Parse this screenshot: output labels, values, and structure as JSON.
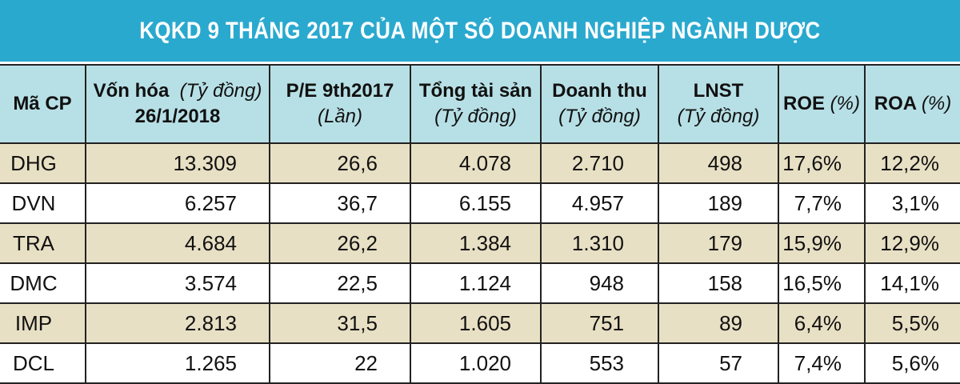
{
  "chart_data": {
    "type": "table",
    "title": "KQKD 9 THÁNG 2017 CỦA MỘT SỐ DOANH NGHIỆP NGÀNH DƯỢC",
    "columns": [
      {
        "label": "Mã CP",
        "unit": ""
      },
      {
        "label": "Vốn hóa",
        "unit": "(Tỷ đồng)",
        "label2": "26/1/2018"
      },
      {
        "label": "P/E 9th2017",
        "unit": "(Lần)"
      },
      {
        "label": "Tổng tài sản",
        "unit": "(Tỷ đồng)"
      },
      {
        "label": "Doanh thu",
        "unit": "(Tỷ đồng)"
      },
      {
        "label": "LNST",
        "unit": "(Tỷ đồng)"
      },
      {
        "label": "ROE",
        "unit": "(%)"
      },
      {
        "label": "ROA",
        "unit": "(%)"
      }
    ],
    "rows": [
      [
        "DHG",
        "13.309",
        "26,6",
        "4.078",
        "2.710",
        "498",
        "17,6%",
        "12,2%"
      ],
      [
        "DVN",
        "6.257",
        "36,7",
        "6.155",
        "4.957",
        "189",
        "7,7%",
        "3,1%"
      ],
      [
        "TRA",
        "4.684",
        "26,2",
        "1.384",
        "1.310",
        "179",
        "15,9%",
        "12,9%"
      ],
      [
        "DMC",
        "3.574",
        "22,5",
        "1.124",
        "948",
        "158",
        "16,5%",
        "14,1%"
      ],
      [
        "IMP",
        "2.813",
        "31,5",
        "1.605",
        "751",
        "89",
        "6,4%",
        "5,5%"
      ],
      [
        "DCL",
        "1.265",
        "22",
        "1.020",
        "553",
        "57",
        "7,4%",
        "5,6%"
      ]
    ]
  },
  "colors": {
    "title_bar": "#2aa9cf",
    "header_bg": "#b7e0e6",
    "row_shade": "#e8e0c4",
    "row_plain": "#ffffff"
  }
}
